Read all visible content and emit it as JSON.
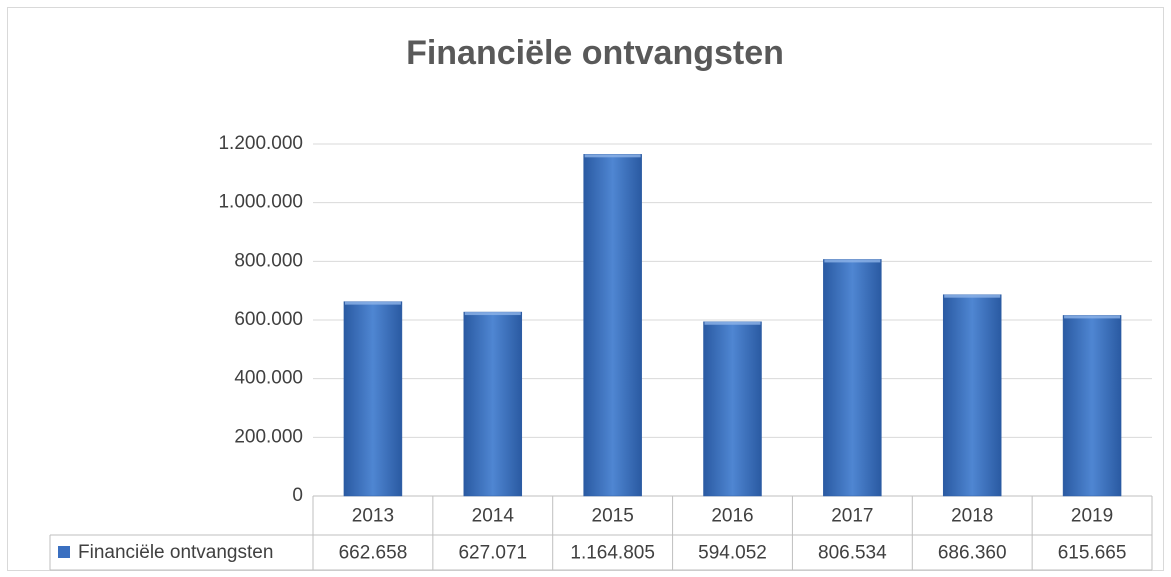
{
  "chart_data": {
    "type": "bar",
    "title": "Financiële ontvangsten",
    "categories": [
      "2013",
      "2014",
      "2015",
      "2016",
      "2017",
      "2018",
      "2019"
    ],
    "series": [
      {
        "name": "Financiële ontvangsten",
        "color": "#3a6fc0",
        "values": [
          662658,
          627071,
          1164805,
          594052,
          806534,
          686360,
          615665
        ],
        "value_labels": [
          "662.658",
          "627.071",
          "1.164.805",
          "594.052",
          "806.534",
          "686.360",
          "615.665"
        ]
      }
    ],
    "ylim": [
      0,
      1200000
    ],
    "yticks": [
      0,
      {
        "value": 200000,
        "label": "200.000"
      },
      {
        "value": 400000,
        "label": "400.000"
      },
      {
        "value": 600000,
        "label": "600.000"
      },
      {
        "value": 800000,
        "label": "800.000"
      },
      {
        "value": 1000000,
        "label": "1.000.000"
      },
      {
        "value": 1200000,
        "label": "1.200.000"
      }
    ],
    "grid": true
  }
}
